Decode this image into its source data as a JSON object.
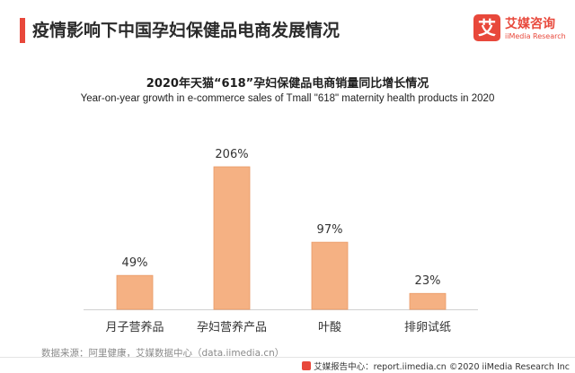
{
  "header": {
    "title": "疫情影响下中国孕妇保健品电商发展情况",
    "accent_color": "#e8483b"
  },
  "logo": {
    "mark": "艾",
    "name_cn": "艾媒咨询",
    "name_en": "iiMedia Research",
    "color": "#e8483b"
  },
  "chart_data": {
    "type": "bar",
    "title": "2020年天猫“618”孕妇保健品电商销量同比增长情况",
    "subtitle": "Year-on-year growth in e-commerce sales of Tmall \"618\" maternity health products in 2020",
    "categories": [
      "月子营养品",
      "孕妇营养产品",
      "叶酸",
      "排卵试纸"
    ],
    "values": [
      49,
      206,
      97,
      23
    ],
    "value_labels": [
      "49%",
      "206%",
      "97%",
      "23%"
    ],
    "unit": "%",
    "xlabel": "",
    "ylabel": "",
    "ylim": [
      0,
      230
    ],
    "grid": false,
    "bar_color": "#f5b183",
    "bar_edge_color": "#ea9a66"
  },
  "source_text": "数据来源：阿里健康，艾媒数据中心（data.iimedia.cn）",
  "footer_text": "艾媒报告中心：report.iimedia.cn ©2020  iiMedia Research Inc"
}
